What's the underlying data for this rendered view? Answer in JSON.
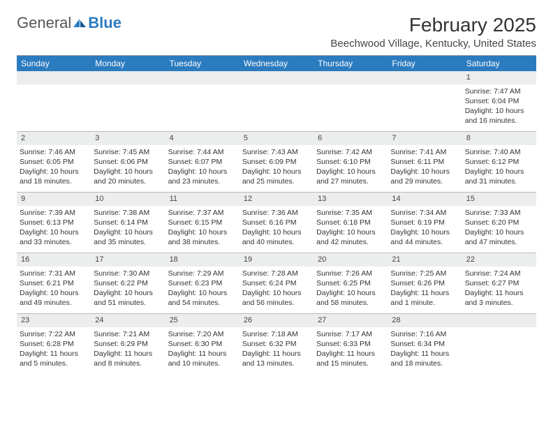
{
  "brand": {
    "text1": "General",
    "text2": "Blue"
  },
  "title": "February 2025",
  "location": "Beechwood Village, Kentucky, United States",
  "colors": {
    "header_bar": "#2b7bbf",
    "daynum_bg": "#eceded",
    "border": "#bbbbbb",
    "text": "#333333",
    "background": "#ffffff"
  },
  "font": {
    "family": "Arial",
    "title_size": 28,
    "location_size": 15,
    "dayname_size": 12,
    "cell_size": 10.5
  },
  "daynames": [
    "Sunday",
    "Monday",
    "Tuesday",
    "Wednesday",
    "Thursday",
    "Friday",
    "Saturday"
  ],
  "weeks": [
    [
      null,
      null,
      null,
      null,
      null,
      null,
      {
        "n": "1",
        "sr": "Sunrise: 7:47 AM",
        "ss": "Sunset: 6:04 PM",
        "d1": "Daylight: 10 hours",
        "d2": "and 16 minutes."
      }
    ],
    [
      {
        "n": "2",
        "sr": "Sunrise: 7:46 AM",
        "ss": "Sunset: 6:05 PM",
        "d1": "Daylight: 10 hours",
        "d2": "and 18 minutes."
      },
      {
        "n": "3",
        "sr": "Sunrise: 7:45 AM",
        "ss": "Sunset: 6:06 PM",
        "d1": "Daylight: 10 hours",
        "d2": "and 20 minutes."
      },
      {
        "n": "4",
        "sr": "Sunrise: 7:44 AM",
        "ss": "Sunset: 6:07 PM",
        "d1": "Daylight: 10 hours",
        "d2": "and 23 minutes."
      },
      {
        "n": "5",
        "sr": "Sunrise: 7:43 AM",
        "ss": "Sunset: 6:09 PM",
        "d1": "Daylight: 10 hours",
        "d2": "and 25 minutes."
      },
      {
        "n": "6",
        "sr": "Sunrise: 7:42 AM",
        "ss": "Sunset: 6:10 PM",
        "d1": "Daylight: 10 hours",
        "d2": "and 27 minutes."
      },
      {
        "n": "7",
        "sr": "Sunrise: 7:41 AM",
        "ss": "Sunset: 6:11 PM",
        "d1": "Daylight: 10 hours",
        "d2": "and 29 minutes."
      },
      {
        "n": "8",
        "sr": "Sunrise: 7:40 AM",
        "ss": "Sunset: 6:12 PM",
        "d1": "Daylight: 10 hours",
        "d2": "and 31 minutes."
      }
    ],
    [
      {
        "n": "9",
        "sr": "Sunrise: 7:39 AM",
        "ss": "Sunset: 6:13 PM",
        "d1": "Daylight: 10 hours",
        "d2": "and 33 minutes."
      },
      {
        "n": "10",
        "sr": "Sunrise: 7:38 AM",
        "ss": "Sunset: 6:14 PM",
        "d1": "Daylight: 10 hours",
        "d2": "and 35 minutes."
      },
      {
        "n": "11",
        "sr": "Sunrise: 7:37 AM",
        "ss": "Sunset: 6:15 PM",
        "d1": "Daylight: 10 hours",
        "d2": "and 38 minutes."
      },
      {
        "n": "12",
        "sr": "Sunrise: 7:36 AM",
        "ss": "Sunset: 6:16 PM",
        "d1": "Daylight: 10 hours",
        "d2": "and 40 minutes."
      },
      {
        "n": "13",
        "sr": "Sunrise: 7:35 AM",
        "ss": "Sunset: 6:18 PM",
        "d1": "Daylight: 10 hours",
        "d2": "and 42 minutes."
      },
      {
        "n": "14",
        "sr": "Sunrise: 7:34 AM",
        "ss": "Sunset: 6:19 PM",
        "d1": "Daylight: 10 hours",
        "d2": "and 44 minutes."
      },
      {
        "n": "15",
        "sr": "Sunrise: 7:33 AM",
        "ss": "Sunset: 6:20 PM",
        "d1": "Daylight: 10 hours",
        "d2": "and 47 minutes."
      }
    ],
    [
      {
        "n": "16",
        "sr": "Sunrise: 7:31 AM",
        "ss": "Sunset: 6:21 PM",
        "d1": "Daylight: 10 hours",
        "d2": "and 49 minutes."
      },
      {
        "n": "17",
        "sr": "Sunrise: 7:30 AM",
        "ss": "Sunset: 6:22 PM",
        "d1": "Daylight: 10 hours",
        "d2": "and 51 minutes."
      },
      {
        "n": "18",
        "sr": "Sunrise: 7:29 AM",
        "ss": "Sunset: 6:23 PM",
        "d1": "Daylight: 10 hours",
        "d2": "and 54 minutes."
      },
      {
        "n": "19",
        "sr": "Sunrise: 7:28 AM",
        "ss": "Sunset: 6:24 PM",
        "d1": "Daylight: 10 hours",
        "d2": "and 56 minutes."
      },
      {
        "n": "20",
        "sr": "Sunrise: 7:26 AM",
        "ss": "Sunset: 6:25 PM",
        "d1": "Daylight: 10 hours",
        "d2": "and 58 minutes."
      },
      {
        "n": "21",
        "sr": "Sunrise: 7:25 AM",
        "ss": "Sunset: 6:26 PM",
        "d1": "Daylight: 11 hours",
        "d2": "and 1 minute."
      },
      {
        "n": "22",
        "sr": "Sunrise: 7:24 AM",
        "ss": "Sunset: 6:27 PM",
        "d1": "Daylight: 11 hours",
        "d2": "and 3 minutes."
      }
    ],
    [
      {
        "n": "23",
        "sr": "Sunrise: 7:22 AM",
        "ss": "Sunset: 6:28 PM",
        "d1": "Daylight: 11 hours",
        "d2": "and 5 minutes."
      },
      {
        "n": "24",
        "sr": "Sunrise: 7:21 AM",
        "ss": "Sunset: 6:29 PM",
        "d1": "Daylight: 11 hours",
        "d2": "and 8 minutes."
      },
      {
        "n": "25",
        "sr": "Sunrise: 7:20 AM",
        "ss": "Sunset: 6:30 PM",
        "d1": "Daylight: 11 hours",
        "d2": "and 10 minutes."
      },
      {
        "n": "26",
        "sr": "Sunrise: 7:18 AM",
        "ss": "Sunset: 6:32 PM",
        "d1": "Daylight: 11 hours",
        "d2": "and 13 minutes."
      },
      {
        "n": "27",
        "sr": "Sunrise: 7:17 AM",
        "ss": "Sunset: 6:33 PM",
        "d1": "Daylight: 11 hours",
        "d2": "and 15 minutes."
      },
      {
        "n": "28",
        "sr": "Sunrise: 7:16 AM",
        "ss": "Sunset: 6:34 PM",
        "d1": "Daylight: 11 hours",
        "d2": "and 18 minutes."
      },
      null
    ]
  ]
}
